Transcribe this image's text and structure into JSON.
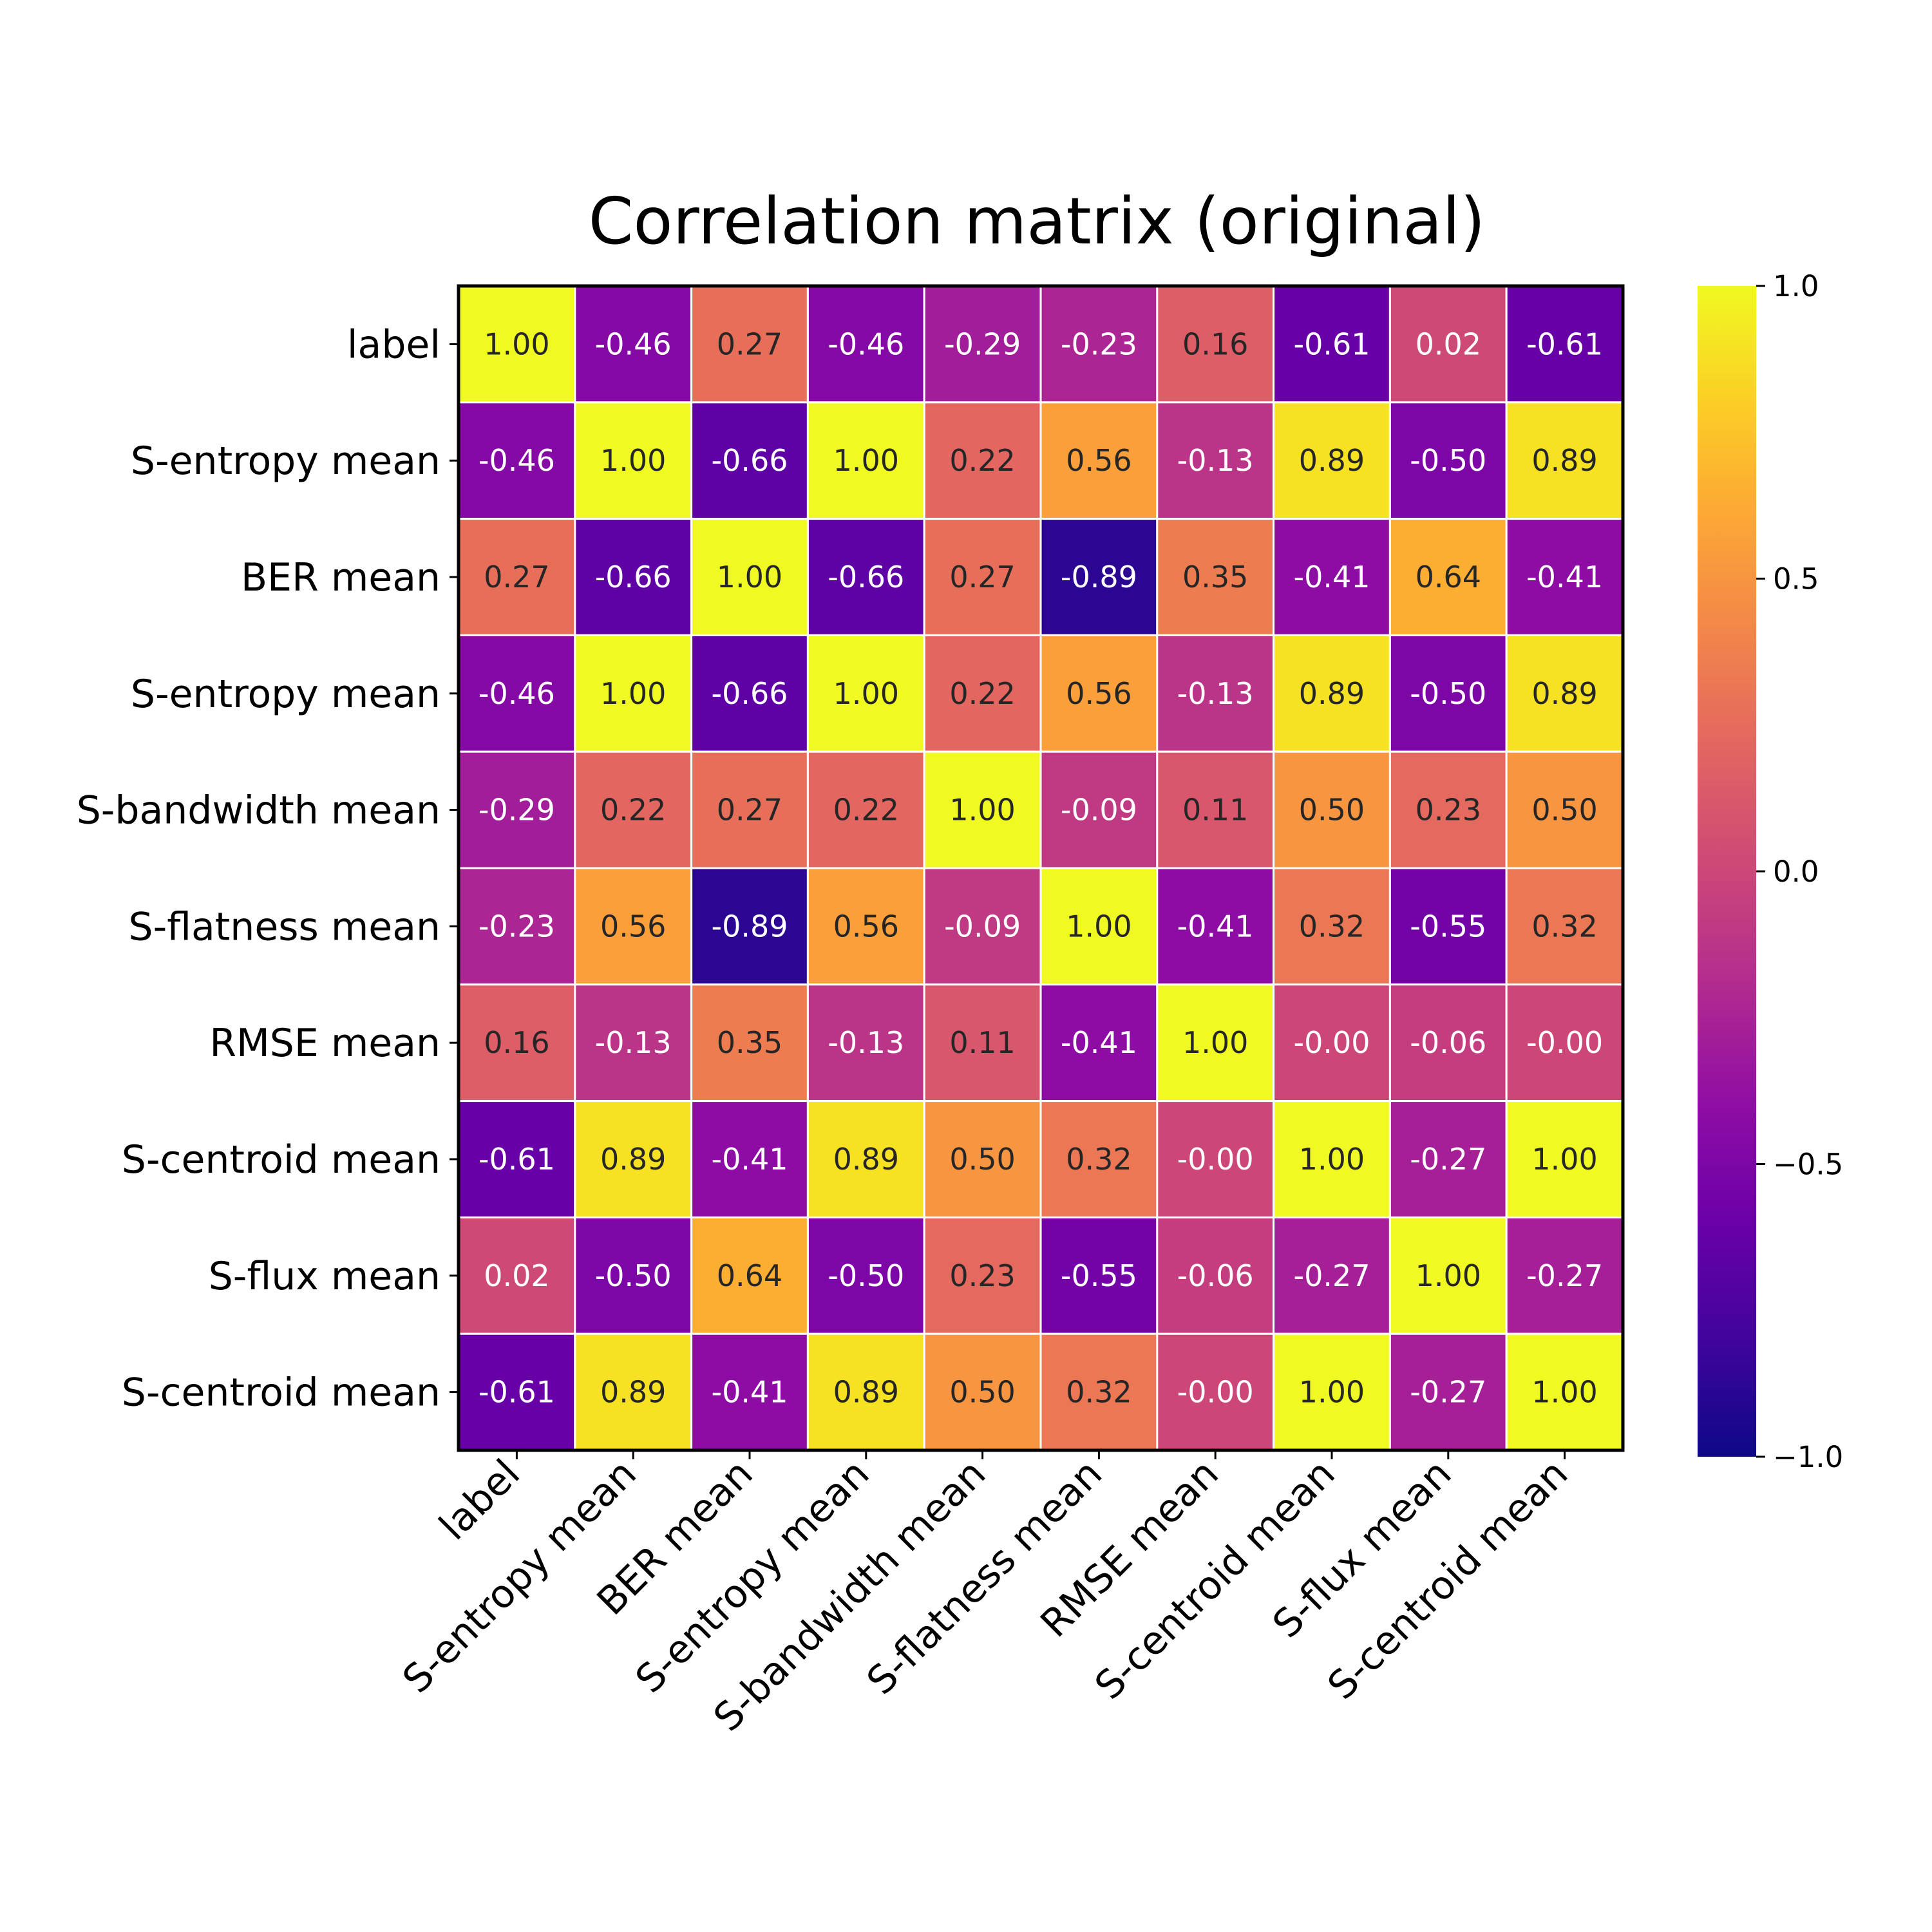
{
  "chart_data": {
    "type": "heatmap",
    "title": "Correlation matrix (original)",
    "row_labels": [
      "label",
      "S-entropy mean",
      "BER mean",
      "S-entropy mean",
      "S-bandwidth mean",
      "S-flatness mean",
      "RMSE mean",
      "S-centroid mean",
      "S-flux mean",
      "S-centroid mean"
    ],
    "col_labels": [
      "label",
      "S-entropy mean",
      "BER mean",
      "S-entropy mean",
      "S-bandwidth mean",
      "S-flatness mean",
      "RMSE mean",
      "S-centroid mean",
      "S-flux mean",
      "S-centroid mean"
    ],
    "values": [
      [
        1.0,
        -0.46,
        0.27,
        -0.46,
        -0.29,
        -0.23,
        0.16,
        -0.61,
        0.02,
        -0.61
      ],
      [
        -0.46,
        1.0,
        -0.66,
        1.0,
        0.22,
        0.56,
        -0.13,
        0.89,
        -0.5,
        0.89
      ],
      [
        0.27,
        -0.66,
        1.0,
        -0.66,
        0.27,
        -0.89,
        0.35,
        -0.41,
        0.64,
        -0.41
      ],
      [
        -0.46,
        1.0,
        -0.66,
        1.0,
        0.22,
        0.56,
        -0.13,
        0.89,
        -0.5,
        0.89
      ],
      [
        -0.29,
        0.22,
        0.27,
        0.22,
        1.0,
        -0.09,
        0.11,
        0.5,
        0.23,
        0.5
      ],
      [
        -0.23,
        0.56,
        -0.89,
        0.56,
        -0.09,
        1.0,
        -0.41,
        0.32,
        -0.55,
        0.32
      ],
      [
        0.16,
        -0.13,
        0.35,
        -0.13,
        0.11,
        -0.41,
        1.0,
        -0.0,
        -0.06,
        -0.0
      ],
      [
        -0.61,
        0.89,
        -0.41,
        0.89,
        0.5,
        0.32,
        -0.0,
        1.0,
        -0.27,
        1.0
      ],
      [
        0.02,
        -0.5,
        0.64,
        -0.5,
        0.23,
        -0.55,
        -0.06,
        -0.27,
        1.0,
        -0.27
      ],
      [
        -0.61,
        0.89,
        -0.41,
        0.89,
        0.5,
        0.32,
        -0.0,
        1.0,
        -0.27,
        1.0
      ]
    ],
    "value_labels": [
      [
        "1.00",
        "-0.46",
        "0.27",
        "-0.46",
        "-0.29",
        "-0.23",
        "0.16",
        "-0.61",
        "0.02",
        "-0.61"
      ],
      [
        "-0.46",
        "1.00",
        "-0.66",
        "1.00",
        "0.22",
        "0.56",
        "-0.13",
        "0.89",
        "-0.50",
        "0.89"
      ],
      [
        "0.27",
        "-0.66",
        "1.00",
        "-0.66",
        "0.27",
        "-0.89",
        "0.35",
        "-0.41",
        "0.64",
        "-0.41"
      ],
      [
        "-0.46",
        "1.00",
        "-0.66",
        "1.00",
        "0.22",
        "0.56",
        "-0.13",
        "0.89",
        "-0.50",
        "0.89"
      ],
      [
        "-0.29",
        "0.22",
        "0.27",
        "0.22",
        "1.00",
        "-0.09",
        "0.11",
        "0.50",
        "0.23",
        "0.50"
      ],
      [
        "-0.23",
        "0.56",
        "-0.89",
        "0.56",
        "-0.09",
        "1.00",
        "-0.41",
        "0.32",
        "-0.55",
        "0.32"
      ],
      [
        "0.16",
        "-0.13",
        "0.35",
        "-0.13",
        "0.11",
        "-0.41",
        "1.00",
        "-0.00",
        "-0.06",
        "-0.00"
      ],
      [
        "-0.61",
        "0.89",
        "-0.41",
        "0.89",
        "0.50",
        "0.32",
        "-0.00",
        "1.00",
        "-0.27",
        "1.00"
      ],
      [
        "0.02",
        "-0.50",
        "0.64",
        "-0.50",
        "0.23",
        "-0.55",
        "-0.06",
        "-0.27",
        "1.00",
        "-0.27"
      ],
      [
        "-0.61",
        "0.89",
        "-0.41",
        "0.89",
        "0.50",
        "0.32",
        "-0.00",
        "1.00",
        "-0.27",
        "1.00"
      ]
    ],
    "colormap": "plasma",
    "vmin": -1.0,
    "vmax": 1.0,
    "colorbar": {
      "ticks": [
        1.0,
        0.5,
        0.0,
        -0.5,
        -1.0
      ],
      "tick_labels": [
        "1.0",
        "0.5",
        "0.0",
        "−0.5",
        "−1.0"
      ]
    },
    "grid": true,
    "xlabel": "",
    "ylabel": ""
  }
}
